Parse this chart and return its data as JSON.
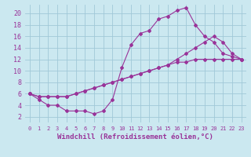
{
  "background_color": "#cbe8f0",
  "grid_color": "#a0c8d8",
  "line_color": "#993399",
  "xlabel": "Windchill (Refroidissement éolien,°C)",
  "xlim": [
    -0.5,
    23.5
  ],
  "ylim": [
    1.0,
    21.5
  ],
  "yticks": [
    2,
    4,
    6,
    8,
    10,
    12,
    14,
    16,
    18,
    20
  ],
  "xticks": [
    0,
    1,
    2,
    3,
    4,
    5,
    6,
    7,
    8,
    9,
    10,
    11,
    12,
    13,
    14,
    15,
    16,
    17,
    18,
    19,
    20,
    21,
    22,
    23
  ],
  "line1_x": [
    0,
    1,
    2,
    3,
    4,
    5,
    6,
    7,
    8,
    9,
    10,
    11,
    12,
    13,
    14,
    15,
    16,
    17,
    18,
    19,
    20,
    21,
    22,
    23
  ],
  "line1_y": [
    6.0,
    5.0,
    4.0,
    4.0,
    3.0,
    3.0,
    3.0,
    2.5,
    3.0,
    5.0,
    10.5,
    14.5,
    16.5,
    17.0,
    19.0,
    19.5,
    20.5,
    21.0,
    18.0,
    16.0,
    15.0,
    13.0,
    12.5,
    12.0
  ],
  "line2_x": [
    0,
    1,
    2,
    3,
    4,
    5,
    6,
    7,
    8,
    9,
    10,
    11,
    12,
    13,
    14,
    15,
    16,
    17,
    18,
    19,
    20,
    21,
    22,
    23
  ],
  "line2_y": [
    6.0,
    5.5,
    5.5,
    5.5,
    5.5,
    6.0,
    6.5,
    7.0,
    7.5,
    8.0,
    8.5,
    9.0,
    9.5,
    10.0,
    10.5,
    11.0,
    12.0,
    13.0,
    14.0,
    15.0,
    16.0,
    15.0,
    13.0,
    12.0
  ],
  "line3_x": [
    0,
    1,
    2,
    3,
    4,
    5,
    6,
    7,
    8,
    9,
    10,
    11,
    12,
    13,
    14,
    15,
    16,
    17,
    18,
    19,
    20,
    21,
    22,
    23
  ],
  "line3_y": [
    6.0,
    5.5,
    5.5,
    5.5,
    5.5,
    6.0,
    6.5,
    7.0,
    7.5,
    8.0,
    8.5,
    9.0,
    9.5,
    10.0,
    10.5,
    11.0,
    11.5,
    11.5,
    12.0,
    12.0,
    12.0,
    12.0,
    12.0,
    12.0
  ]
}
